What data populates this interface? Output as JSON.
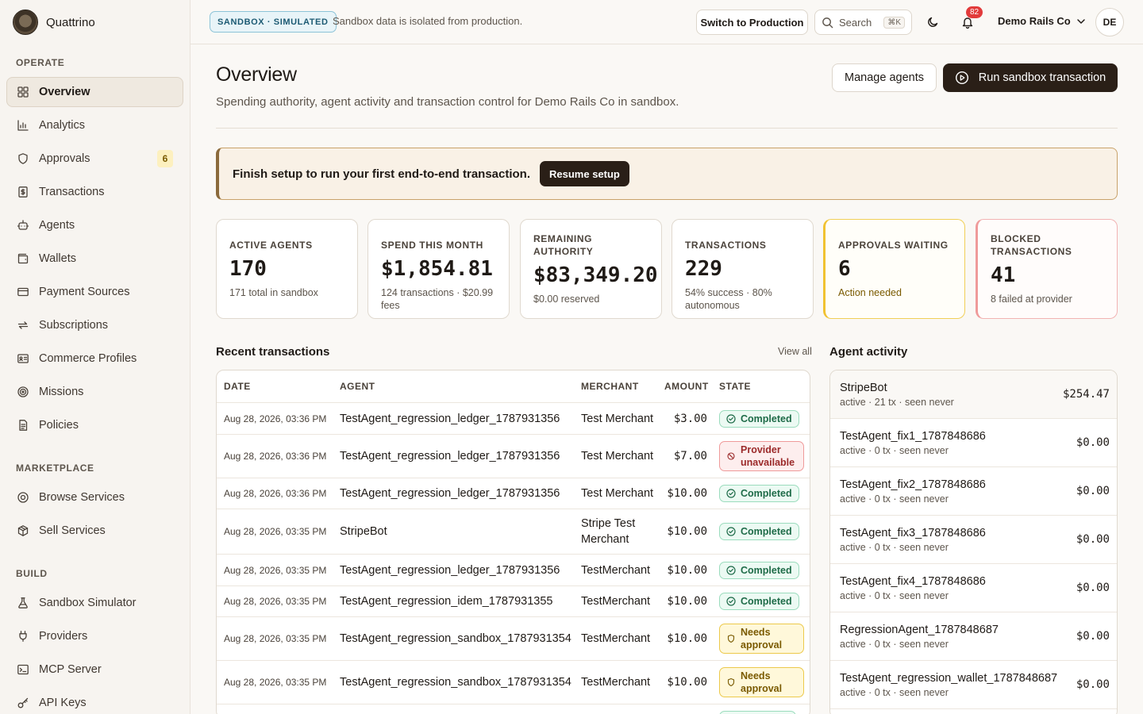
{
  "brand": {
    "name": "Quattrino"
  },
  "sidebar": {
    "sections": [
      {
        "title": "OPERATE",
        "items": [
          {
            "label": "Overview",
            "icon": "grid-icon",
            "active": true
          },
          {
            "label": "Analytics",
            "icon": "bar-chart-icon"
          },
          {
            "label": "Approvals",
            "icon": "shield-icon",
            "badge": "6"
          },
          {
            "label": "Transactions",
            "icon": "dollar-receipt-icon"
          },
          {
            "label": "Agents",
            "icon": "robot-icon"
          },
          {
            "label": "Wallets",
            "icon": "wallet-icon"
          },
          {
            "label": "Payment Sources",
            "icon": "credit-card-icon"
          },
          {
            "label": "Subscriptions",
            "icon": "repeat-icon"
          },
          {
            "label": "Commerce Profiles",
            "icon": "id-card-icon"
          },
          {
            "label": "Missions",
            "icon": "target-icon"
          },
          {
            "label": "Policies",
            "icon": "document-icon"
          }
        ]
      },
      {
        "title": "MARKETPLACE",
        "items": [
          {
            "label": "Browse Services",
            "icon": "store-icon"
          },
          {
            "label": "Sell Services",
            "icon": "package-icon"
          }
        ]
      },
      {
        "title": "BUILD",
        "items": [
          {
            "label": "Sandbox Simulator",
            "icon": "flask-icon"
          },
          {
            "label": "Providers",
            "icon": "plug-icon"
          },
          {
            "label": "MCP Server",
            "icon": "terminal-icon"
          },
          {
            "label": "API Keys",
            "icon": "key-icon"
          }
        ]
      }
    ]
  },
  "topbar": {
    "mode_pill": "SANDBOX · SIMULATED",
    "mode_note": "Sandbox data is isolated from production.",
    "switch_label": "Switch to Production",
    "search_placeholder": "Search",
    "search_shortcut": "⌘K",
    "notification_count": "82",
    "org_name": "Demo Rails Co",
    "avatar_initials": "DE"
  },
  "page": {
    "title": "Overview",
    "subtitle": "Spending authority, agent activity and transaction control for Demo Rails Co in sandbox.",
    "manage_label": "Manage agents",
    "run_label": "Run sandbox transaction"
  },
  "setup": {
    "text": "Finish setup to run your first end-to-end transaction.",
    "button": "Resume setup"
  },
  "stats": [
    {
      "label": "Active agents",
      "value": "170",
      "sub": "171 total in sandbox",
      "tone": "normal"
    },
    {
      "label": "Spend this month",
      "value": "$1,854.81",
      "sub": "124 transactions · $20.99 fees",
      "tone": "normal"
    },
    {
      "label": "Remaining authority",
      "value": "$83,349.20",
      "sub": "$0.00 reserved",
      "tone": "normal"
    },
    {
      "label": "Transactions",
      "value": "229",
      "sub": "54% success · 80% autonomous",
      "tone": "normal"
    },
    {
      "label": "Approvals waiting",
      "value": "6",
      "sub": "Action needed",
      "tone": "warn"
    },
    {
      "label": "Blocked transactions",
      "value": "41",
      "sub": "8 failed at provider",
      "tone": "err"
    }
  ],
  "recent": {
    "title": "Recent transactions",
    "view_all": "View all",
    "columns": [
      "DATE",
      "AGENT",
      "MERCHANT",
      "AMOUNT",
      "STATE"
    ],
    "rows": [
      {
        "date": "Aug 28, 2026, 03:36 PM",
        "agent": "TestAgent_regression_ledger_1787931356",
        "merchant": "Test Merchant",
        "amount": "$3.00",
        "state": "Completed",
        "kind": "ok"
      },
      {
        "date": "Aug 28, 2026, 03:36 PM",
        "agent": "TestAgent_regression_ledger_1787931356",
        "merchant": "Test Merchant",
        "amount": "$7.00",
        "state": "Provider unavailable",
        "kind": "bad"
      },
      {
        "date": "Aug 28, 2026, 03:36 PM",
        "agent": "TestAgent_regression_ledger_1787931356",
        "merchant": "Test Merchant",
        "amount": "$10.00",
        "state": "Completed",
        "kind": "ok"
      },
      {
        "date": "Aug 28, 2026, 03:35 PM",
        "agent": "StripeBot",
        "merchant": "Stripe Test Merchant",
        "amount": "$10.00",
        "state": "Completed",
        "kind": "ok"
      },
      {
        "date": "Aug 28, 2026, 03:35 PM",
        "agent": "TestAgent_regression_ledger_1787931356",
        "merchant": "TestMerchant",
        "amount": "$10.00",
        "state": "Completed",
        "kind": "ok"
      },
      {
        "date": "Aug 28, 2026, 03:35 PM",
        "agent": "TestAgent_regression_idem_1787931355",
        "merchant": "TestMerchant",
        "amount": "$10.00",
        "state": "Completed",
        "kind": "ok"
      },
      {
        "date": "Aug 28, 2026, 03:35 PM",
        "agent": "TestAgent_regression_sandbox_1787931354",
        "merchant": "TestMerchant",
        "amount": "$10.00",
        "state": "Needs approval",
        "kind": "need"
      },
      {
        "date": "Aug 28, 2026, 03:35 PM",
        "agent": "TestAgent_regression_sandbox_1787931354",
        "merchant": "TestMerchant",
        "amount": "$10.00",
        "state": "Needs approval",
        "kind": "need"
      }
    ]
  },
  "activity": {
    "title": "Agent activity",
    "items": [
      {
        "name": "StripeBot",
        "meta": "active · 21 tx · seen never",
        "amount": "$254.47"
      },
      {
        "name": "TestAgent_fix1_1787848686",
        "meta": "active · 0 tx · seen never",
        "amount": "$0.00"
      },
      {
        "name": "TestAgent_fix2_1787848686",
        "meta": "active · 0 tx · seen never",
        "amount": "$0.00"
      },
      {
        "name": "TestAgent_fix3_1787848686",
        "meta": "active · 0 tx · seen never",
        "amount": "$0.00"
      },
      {
        "name": "TestAgent_fix4_1787848686",
        "meta": "active · 0 tx · seen never",
        "amount": "$0.00"
      },
      {
        "name": "RegressionAgent_1787848687",
        "meta": "active · 0 tx · seen never",
        "amount": "$0.00"
      },
      {
        "name": "TestAgent_regression_wallet_1787848687",
        "meta": "active · 0 tx · seen never",
        "amount": "$0.00"
      }
    ]
  }
}
